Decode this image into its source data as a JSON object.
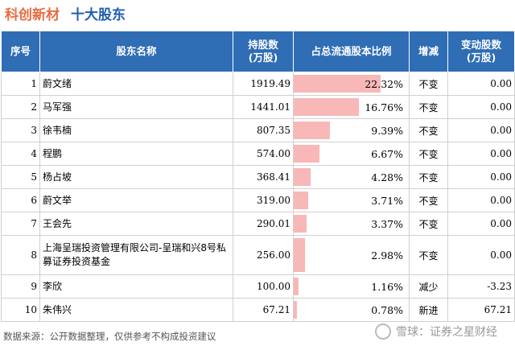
{
  "header": {
    "company": "科创新材",
    "section": "十大股东"
  },
  "table": {
    "columns": [
      "序号",
      "股东名称",
      "持股数\n(万股)",
      "占总流通股本比例",
      "增减",
      "变动股数\n(万股)"
    ],
    "rows": [
      {
        "rank": "1",
        "name": "蔚文绪",
        "shares": "1919.49",
        "ratio": "22.32%",
        "ratio_value": 22.32,
        "change": "不变",
        "change_type": "neutral",
        "delta": "0.00"
      },
      {
        "rank": "2",
        "name": "马军强",
        "shares": "1441.01",
        "ratio": "16.76%",
        "ratio_value": 16.76,
        "change": "不变",
        "change_type": "neutral",
        "delta": "0.00"
      },
      {
        "rank": "3",
        "name": "徐韦楠",
        "shares": "807.35",
        "ratio": "9.39%",
        "ratio_value": 9.39,
        "change": "不变",
        "change_type": "neutral",
        "delta": "0.00"
      },
      {
        "rank": "4",
        "name": "程鹏",
        "shares": "574.00",
        "ratio": "6.67%",
        "ratio_value": 6.67,
        "change": "不变",
        "change_type": "neutral",
        "delta": "0.00"
      },
      {
        "rank": "5",
        "name": "杨占坡",
        "shares": "368.41",
        "ratio": "4.28%",
        "ratio_value": 4.28,
        "change": "不变",
        "change_type": "neutral",
        "delta": "0.00"
      },
      {
        "rank": "6",
        "name": "蔚文举",
        "shares": "319.00",
        "ratio": "3.71%",
        "ratio_value": 3.71,
        "change": "不变",
        "change_type": "neutral",
        "delta": "0.00"
      },
      {
        "rank": "7",
        "name": "王会先",
        "shares": "290.01",
        "ratio": "3.37%",
        "ratio_value": 3.37,
        "change": "不变",
        "change_type": "neutral",
        "delta": "0.00"
      },
      {
        "rank": "8",
        "name": "上海呈瑞投资管理有限公司-呈瑞和兴8号私募证券投资基金",
        "shares": "256.00",
        "ratio": "2.98%",
        "ratio_value": 2.98,
        "change": "不变",
        "change_type": "neutral",
        "delta": "0.00",
        "tall": true
      },
      {
        "rank": "9",
        "name": "李欣",
        "shares": "100.00",
        "ratio": "1.16%",
        "ratio_value": 1.16,
        "change": "减少",
        "change_type": "down",
        "delta": "-3.23"
      },
      {
        "rank": "10",
        "name": "朱伟兴",
        "shares": "67.21",
        "ratio": "0.78%",
        "ratio_value": 0.78,
        "change": "新进",
        "change_type": "up",
        "delta": "67.21"
      }
    ]
  },
  "footer": {
    "source": "数据来源：公开数据整理，仅供参考不构成投资建议",
    "brand": "雪球：证券之星财经"
  },
  "colors": {
    "header_bg": "#2f6db5",
    "bar": "#f8b8b8",
    "down": "#2a9d3c",
    "up": "#e02020",
    "title_company": "#e96c43",
    "title_section": "#1f5fae"
  }
}
